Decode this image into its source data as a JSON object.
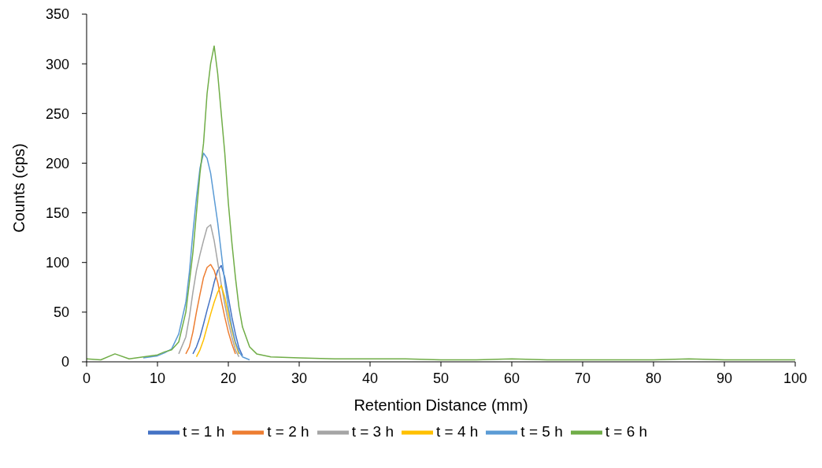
{
  "chart_data": {
    "type": "line",
    "xlabel": "Retention Distance (mm)",
    "ylabel": "Counts (cps)",
    "x": [
      0,
      2,
      4,
      6,
      8,
      10,
      11,
      12,
      13,
      14,
      14.5,
      15,
      15.5,
      16,
      16.5,
      17,
      17.5,
      18,
      18.5,
      19,
      19.5,
      20,
      20.5,
      21,
      21.5,
      22,
      23,
      24,
      26,
      30,
      35,
      40,
      45,
      50,
      55,
      60,
      65,
      70,
      75,
      80,
      85,
      90,
      95,
      100
    ],
    "series": [
      {
        "name": "t = 1 h",
        "color": "#4472c4",
        "values": [
          null,
          null,
          null,
          null,
          null,
          null,
          null,
          null,
          null,
          null,
          null,
          8,
          15,
          25,
          38,
          52,
          65,
          80,
          92,
          97,
          85,
          65,
          45,
          28,
          14,
          6,
          null,
          null,
          null,
          null,
          null,
          null,
          null,
          null,
          null,
          null,
          null,
          null,
          null,
          null,
          null,
          null,
          null,
          null
        ]
      },
      {
        "name": "t = 2 h",
        "color": "#ed7d31",
        "values": [
          null,
          null,
          null,
          null,
          null,
          null,
          null,
          null,
          null,
          8,
          15,
          30,
          50,
          68,
          85,
          95,
          98,
          92,
          80,
          62,
          45,
          30,
          18,
          8,
          null,
          null,
          null,
          null,
          null,
          null,
          null,
          null,
          null,
          null,
          null,
          null,
          null,
          null,
          null,
          null,
          null,
          null,
          null,
          null
        ]
      },
      {
        "name": "t = 3 h",
        "color": "#a5a5a5",
        "values": [
          null,
          null,
          null,
          null,
          null,
          null,
          null,
          null,
          8,
          25,
          45,
          70,
          92,
          108,
          122,
          135,
          138,
          122,
          100,
          78,
          58,
          40,
          25,
          12,
          5,
          null,
          null,
          null,
          null,
          null,
          null,
          null,
          null,
          null,
          null,
          null,
          null,
          null,
          null,
          null,
          null,
          null,
          null,
          null
        ]
      },
      {
        "name": "t = 4 h",
        "color": "#ffc000",
        "values": [
          null,
          null,
          null,
          null,
          null,
          null,
          null,
          null,
          null,
          null,
          null,
          null,
          5,
          12,
          22,
          35,
          48,
          60,
          70,
          77,
          65,
          48,
          32,
          18,
          8,
          null,
          null,
          null,
          null,
          null,
          null,
          null,
          null,
          null,
          null,
          null,
          null,
          null,
          null,
          null,
          null,
          null,
          null,
          null
        ]
      },
      {
        "name": "t = 5 h",
        "color": "#5b9bd5",
        "values": [
          null,
          null,
          null,
          null,
          4,
          6,
          9,
          13,
          28,
          60,
          90,
          130,
          165,
          195,
          210,
          205,
          190,
          165,
          140,
          110,
          80,
          55,
          35,
          20,
          10,
          5,
          2,
          null,
          null,
          null,
          null,
          null,
          null,
          null,
          null,
          null,
          null,
          null,
          null,
          null,
          null,
          null,
          null,
          null
        ]
      },
      {
        "name": "t = 6 h",
        "color": "#70ad47",
        "values": [
          3,
          2,
          8,
          3,
          5,
          7,
          10,
          12,
          20,
          50,
          80,
          110,
          150,
          190,
          220,
          270,
          300,
          318,
          290,
          250,
          210,
          160,
          120,
          85,
          55,
          35,
          15,
          8,
          5,
          4,
          3,
          3,
          3,
          2,
          2,
          3,
          2,
          2,
          2,
          2,
          3,
          2,
          2,
          2
        ]
      }
    ],
    "xlim": [
      0,
      100
    ],
    "xticks": [
      0,
      10,
      20,
      30,
      40,
      50,
      60,
      70,
      80,
      90,
      100
    ],
    "ylim": [
      0,
      350
    ],
    "yticks": [
      0,
      50,
      100,
      150,
      200,
      250,
      300,
      350
    ],
    "grid": false,
    "legend": "bottom",
    "marker": "none",
    "line_style": "solid"
  }
}
